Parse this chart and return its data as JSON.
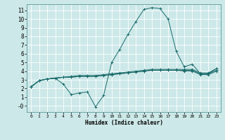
{
  "title": "",
  "xlabel": "Humidex (Indice chaleur)",
  "bg_color": "#cde8e8",
  "line_color": "#1a6b6b",
  "grid_color": "#ffffff",
  "xlim": [
    -0.5,
    23.5
  ],
  "ylim": [
    -0.7,
    11.7
  ],
  "xticks": [
    0,
    1,
    2,
    3,
    4,
    5,
    6,
    7,
    8,
    9,
    10,
    11,
    12,
    13,
    14,
    15,
    16,
    17,
    18,
    19,
    20,
    21,
    22,
    23
  ],
  "yticks": [
    0,
    1,
    2,
    3,
    4,
    5,
    6,
    7,
    8,
    9,
    10,
    11
  ],
  "ytick_labels": [
    "-0",
    "1",
    "2",
    "3",
    "4",
    "5",
    "6",
    "7",
    "8",
    "9",
    "10",
    "11"
  ],
  "series": [
    {
      "x": [
        0,
        1,
        2,
        3,
        4,
        5,
        6,
        7,
        8,
        9,
        10,
        11,
        12,
        13,
        14,
        15,
        16,
        17,
        18,
        19,
        20,
        21,
        22,
        23
      ],
      "y": [
        2.2,
        2.9,
        3.1,
        3.2,
        2.5,
        1.3,
        1.5,
        1.6,
        -0.1,
        1.2,
        5.0,
        6.5,
        8.2,
        9.7,
        11.1,
        11.3,
        11.2,
        10.0,
        6.3,
        4.5,
        4.8,
        3.7,
        3.7,
        4.3
      ]
    },
    {
      "x": [
        0,
        1,
        2,
        3,
        4,
        5,
        6,
        7,
        8,
        9,
        10,
        11,
        12,
        13,
        14,
        15,
        16,
        17,
        18,
        19,
        20,
        21,
        22,
        23
      ],
      "y": [
        2.2,
        2.9,
        3.1,
        3.2,
        3.3,
        3.4,
        3.5,
        3.5,
        3.5,
        3.6,
        3.7,
        3.8,
        3.9,
        4.0,
        4.1,
        4.2,
        4.2,
        4.2,
        4.2,
        4.2,
        4.2,
        3.8,
        3.8,
        4.3
      ]
    },
    {
      "x": [
        0,
        1,
        2,
        3,
        4,
        5,
        6,
        7,
        8,
        9,
        10,
        11,
        12,
        13,
        14,
        15,
        16,
        17,
        18,
        19,
        20,
        21,
        22,
        23
      ],
      "y": [
        2.2,
        2.9,
        3.1,
        3.2,
        3.3,
        3.3,
        3.4,
        3.4,
        3.4,
        3.5,
        3.6,
        3.7,
        3.8,
        3.9,
        4.0,
        4.1,
        4.1,
        4.1,
        4.1,
        4.1,
        4.1,
        3.7,
        3.7,
        4.1
      ]
    },
    {
      "x": [
        0,
        1,
        2,
        3,
        4,
        5,
        6,
        7,
        8,
        9,
        10,
        11,
        12,
        13,
        14,
        15,
        16,
        17,
        18,
        19,
        20,
        21,
        22,
        23
      ],
      "y": [
        2.2,
        2.9,
        3.1,
        3.2,
        3.3,
        3.3,
        3.4,
        3.4,
        3.4,
        3.5,
        3.6,
        3.7,
        3.8,
        3.9,
        4.0,
        4.1,
        4.1,
        4.1,
        4.1,
        4.0,
        4.0,
        3.6,
        3.6,
        4.0
      ]
    }
  ]
}
